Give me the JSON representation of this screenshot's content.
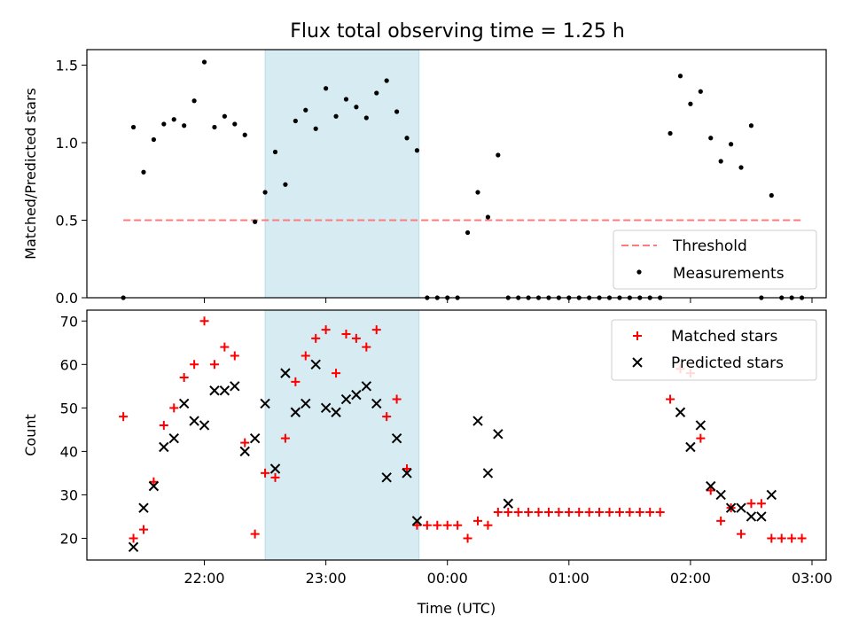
{
  "title": "Flux total observing time = 1.25 h",
  "chart_data": [
    {
      "type": "scatter",
      "ylabel": "Matched/Predicted stars",
      "ylim": [
        0,
        1.6
      ],
      "yticks": [
        0,
        0.5,
        1.0,
        1.5
      ],
      "ytick_labels": [
        "0.0",
        "0.5",
        "1.0",
        "1.5"
      ],
      "shaded_span": [
        "22:30",
        "23:46"
      ],
      "legend_position": "lower right",
      "threshold": {
        "name": "Threshold",
        "value": 0.5,
        "x_range": [
          "21:20",
          "02:56"
        ],
        "color": "#ff7b7b"
      },
      "series": [
        {
          "name": "Measurements",
          "color": "#000000",
          "x": [
            "21:20",
            "21:25",
            "21:30",
            "21:35",
            "21:40",
            "21:45",
            "21:50",
            "21:55",
            "22:00",
            "22:05",
            "22:10",
            "22:15",
            "22:20",
            "22:25",
            "22:30",
            "22:35",
            "22:40",
            "22:45",
            "22:50",
            "22:55",
            "23:00",
            "23:05",
            "23:10",
            "23:15",
            "23:20",
            "23:25",
            "23:30",
            "23:35",
            "23:40",
            "23:45",
            "23:50",
            "23:55",
            "00:00",
            "00:05",
            "00:10",
            "00:15",
            "00:20",
            "00:25",
            "00:30",
            "00:35",
            "00:40",
            "00:45",
            "00:50",
            "00:55",
            "01:00",
            "01:05",
            "01:10",
            "01:15",
            "01:20",
            "01:25",
            "01:30",
            "01:35",
            "01:40",
            "01:45",
            "01:50",
            "01:55",
            "02:00",
            "02:05",
            "02:10",
            "02:15",
            "02:20",
            "02:25",
            "02:30",
            "02:35",
            "02:40",
            "02:45",
            "02:50",
            "02:55"
          ],
          "y": [
            0.0,
            1.1,
            0.81,
            1.02,
            1.12,
            1.15,
            1.11,
            1.27,
            1.52,
            1.1,
            1.17,
            1.12,
            1.05,
            0.49,
            0.68,
            0.94,
            0.73,
            1.14,
            1.21,
            1.09,
            1.35,
            1.17,
            1.28,
            1.23,
            1.16,
            1.32,
            1.4,
            1.2,
            1.03,
            0.95,
            0.0,
            0.0,
            0.0,
            0.0,
            0.42,
            0.68,
            0.52,
            0.92,
            0.0,
            0.0,
            0.0,
            0.0,
            0.0,
            0.0,
            0.0,
            0.0,
            0.0,
            0.0,
            0.0,
            0.0,
            0.0,
            0.0,
            0.0,
            0.0,
            1.06,
            1.43,
            1.25,
            1.33,
            1.03,
            0.88,
            0.99,
            0.84,
            1.11,
            0.0,
            0.66,
            0.0,
            0.0,
            0.0
          ]
        }
      ]
    },
    {
      "type": "scatter",
      "xlabel": "Time (UTC)",
      "ylabel": "Count",
      "ylim": [
        15,
        72.5
      ],
      "yticks": [
        20,
        30,
        40,
        50,
        60,
        70
      ],
      "xlim": [
        "21:02",
        "03:07"
      ],
      "xticks": [
        "22:00",
        "23:00",
        "00:00",
        "01:00",
        "02:00",
        "03:00"
      ],
      "shaded_span": [
        "22:30",
        "23:46"
      ],
      "legend_position": "upper right",
      "series": [
        {
          "name": "Matched stars",
          "marker": "+",
          "color": "#ff0000",
          "x": [
            "21:20",
            "21:25",
            "21:30",
            "21:35",
            "21:40",
            "21:45",
            "21:50",
            "21:55",
            "22:00",
            "22:05",
            "22:10",
            "22:15",
            "22:20",
            "22:25",
            "22:30",
            "22:35",
            "22:40",
            "22:45",
            "22:50",
            "22:55",
            "23:00",
            "23:05",
            "23:10",
            "23:15",
            "23:20",
            "23:25",
            "23:30",
            "23:35",
            "23:40",
            "23:45",
            "23:50",
            "23:55",
            "00:00",
            "00:05",
            "00:10",
            "00:15",
            "00:20",
            "00:25",
            "00:30",
            "00:35",
            "00:40",
            "00:45",
            "00:50",
            "00:55",
            "01:00",
            "01:05",
            "01:10",
            "01:15",
            "01:20",
            "01:25",
            "01:30",
            "01:35",
            "01:40",
            "01:45",
            "01:50",
            "01:55",
            "02:00",
            "02:05",
            "02:10",
            "02:15",
            "02:20",
            "02:25",
            "02:30",
            "02:35",
            "02:40",
            "02:45",
            "02:50",
            "02:55"
          ],
          "y": [
            48,
            20,
            22,
            33,
            46,
            50,
            57,
            60,
            70,
            60,
            64,
            62,
            42,
            21,
            35,
            34,
            43,
            56,
            62,
            66,
            68,
            58,
            67,
            66,
            64,
            68,
            48,
            52,
            36,
            23,
            23,
            23,
            23,
            23,
            20,
            24,
            23,
            26,
            26,
            26,
            26,
            26,
            26,
            26,
            26,
            26,
            26,
            26,
            26,
            26,
            26,
            26,
            26,
            26,
            52,
            59,
            58,
            43,
            31,
            24,
            27,
            21,
            28,
            28,
            20,
            20,
            20,
            20
          ]
        },
        {
          "name": "Predicted stars",
          "marker": "x",
          "color": "#000000",
          "x": [
            "21:25",
            "21:30",
            "21:35",
            "21:40",
            "21:45",
            "21:50",
            "21:55",
            "22:00",
            "22:05",
            "22:10",
            "22:15",
            "22:20",
            "22:25",
            "22:30",
            "22:35",
            "22:40",
            "22:45",
            "22:50",
            "22:55",
            "23:00",
            "23:05",
            "23:10",
            "23:15",
            "23:20",
            "23:25",
            "23:30",
            "23:35",
            "23:40",
            "23:45",
            "00:15",
            "00:20",
            "00:25",
            "00:30",
            "01:55",
            "02:00",
            "02:05",
            "02:10",
            "02:15",
            "02:20",
            "02:25",
            "02:30",
            "02:35",
            "02:40"
          ],
          "y": [
            18,
            27,
            32,
            41,
            43,
            51,
            47,
            46,
            54,
            54,
            55,
            40,
            43,
            51,
            36,
            58,
            49,
            51,
            60,
            50,
            49,
            52,
            53,
            55,
            51,
            34,
            43,
            35,
            24,
            47,
            35,
            44,
            28,
            49,
            41,
            46,
            32,
            30,
            27,
            27,
            25,
            25,
            30
          ]
        }
      ]
    }
  ]
}
